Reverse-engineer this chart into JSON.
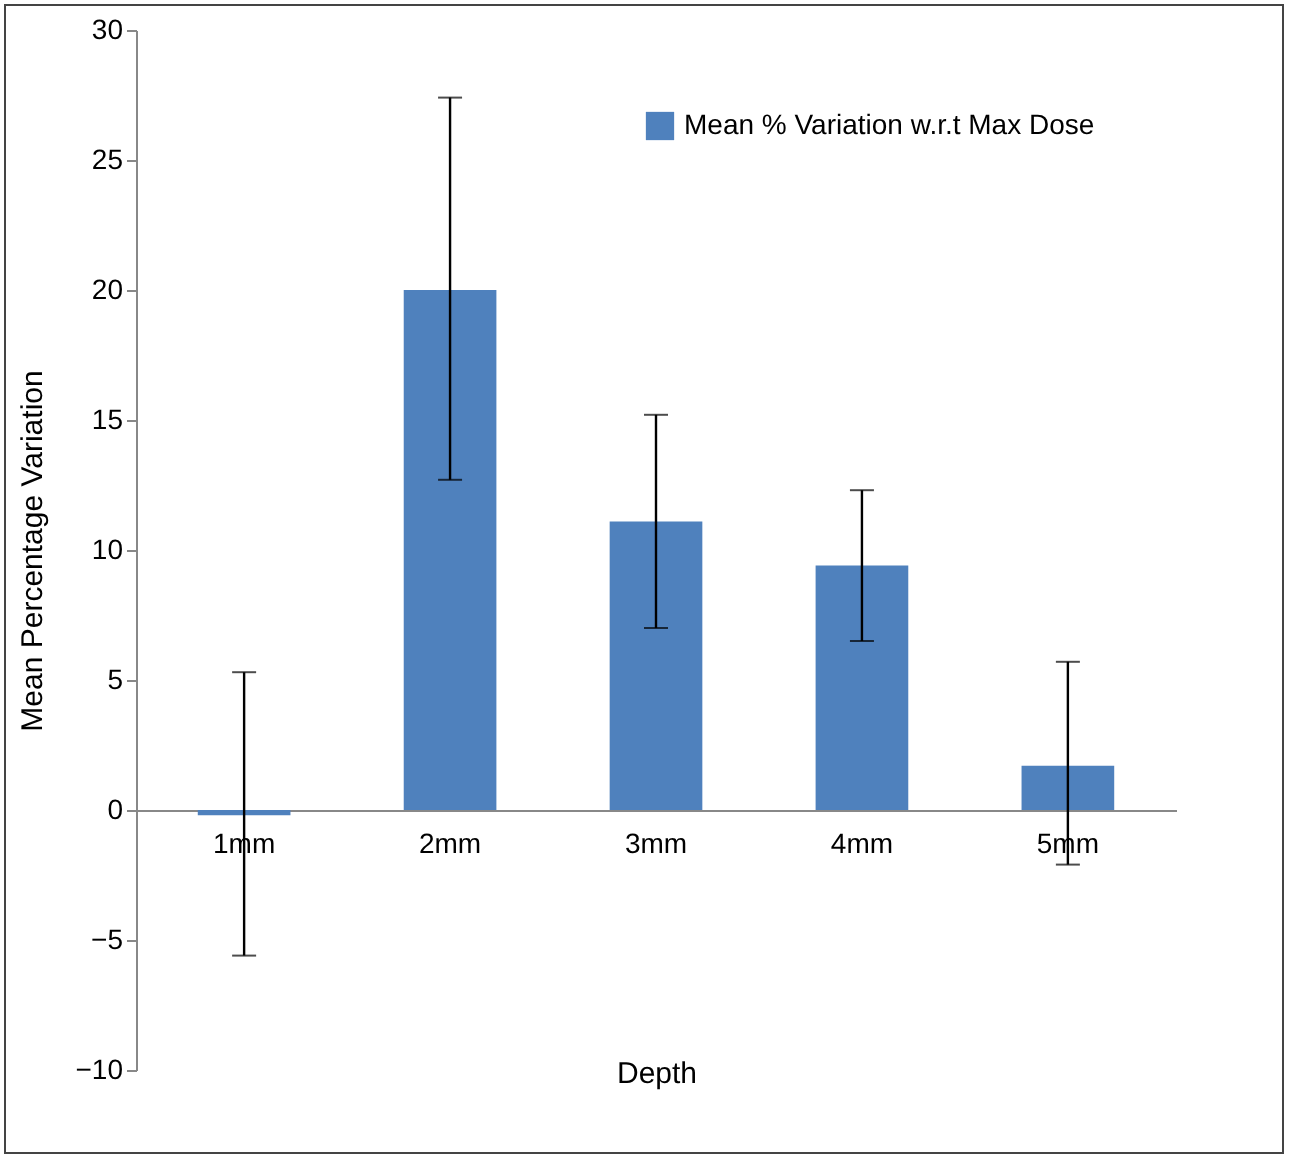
{
  "chart_data": {
    "type": "bar",
    "xlabel": "Depth",
    "ylabel": "Mean Percentage Variation",
    "categories": [
      "1mm",
      "2mm",
      "3mm",
      "4mm",
      "5mm"
    ],
    "series": [
      {
        "name": "Mean % Variation w.r.t Max Dose",
        "color": "#4f81bd",
        "values": [
          -0.2,
          20.0,
          11.1,
          9.4,
          1.7
        ],
        "errors": [
          [
            -5.6,
            5.3
          ],
          [
            12.7,
            27.4
          ],
          [
            7.0,
            15.2
          ],
          [
            6.5,
            12.3
          ],
          [
            -2.1,
            5.7
          ]
        ]
      }
    ],
    "ylim": [
      -10,
      30
    ],
    "yticks": [
      -10,
      -5,
      0,
      5,
      10,
      15,
      20,
      25,
      30
    ],
    "grid": false,
    "legend": "top right"
  }
}
